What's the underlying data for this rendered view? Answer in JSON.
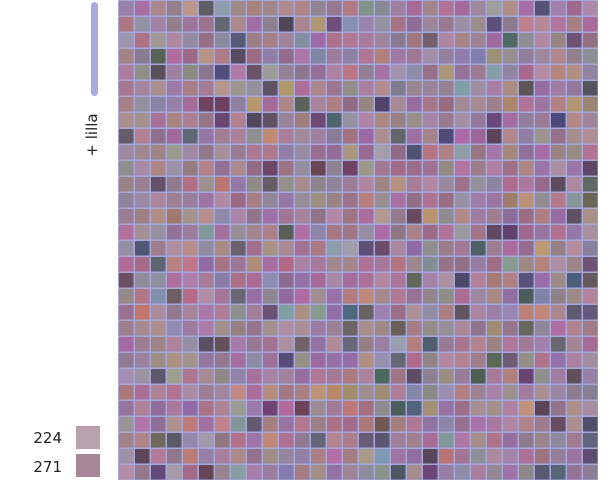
{
  "slider": {
    "label": "+ lilla"
  },
  "legend": [
    {
      "label": 224
    },
    {
      "label": 271
    }
  ]
}
